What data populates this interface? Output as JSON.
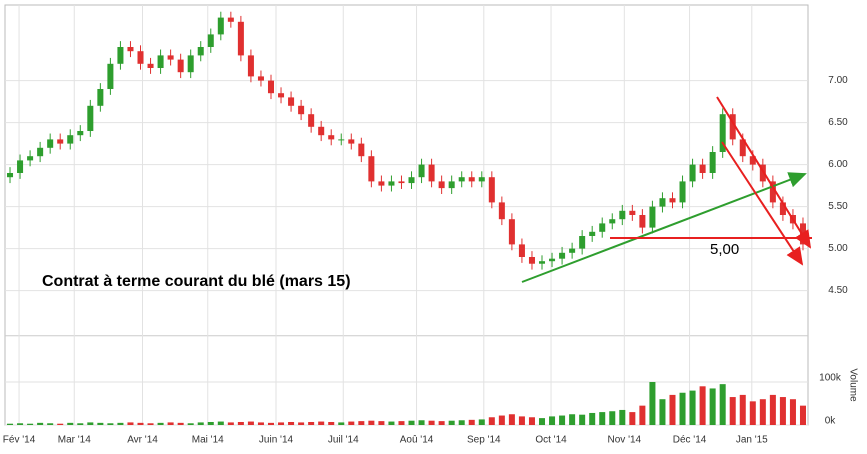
{
  "chart_data": {
    "type": "candlestick",
    "annotations": [
      "Contrat à terme courant du blé (mars 15)",
      "5,00"
    ],
    "volume_label": "Volume",
    "up_color": "#2e9e2e",
    "down_color": "#e03030",
    "grid": true,
    "x": [
      0,
      1,
      2,
      3,
      4,
      5,
      6,
      7,
      8,
      9,
      10,
      11,
      12,
      13,
      14,
      15,
      16,
      17,
      18,
      19,
      20,
      21,
      22,
      23,
      24,
      25,
      26,
      27,
      28,
      29,
      30,
      31,
      32,
      33,
      34,
      35,
      36,
      37,
      38,
      39,
      40,
      41,
      42,
      43,
      44,
      45,
      46,
      47,
      48,
      49,
      50,
      51,
      52,
      53,
      54,
      55,
      56,
      57,
      58,
      59,
      60,
      61,
      62,
      63,
      64,
      65,
      66,
      67,
      68,
      69,
      70,
      71,
      72,
      73,
      74,
      75,
      76,
      77,
      78,
      79
    ],
    "open": [
      5.85,
      5.9,
      6.05,
      6.1,
      6.2,
      6.3,
      6.25,
      6.35,
      6.4,
      6.7,
      6.9,
      7.2,
      7.4,
      7.35,
      7.2,
      7.15,
      7.3,
      7.25,
      7.1,
      7.3,
      7.4,
      7.55,
      7.75,
      7.7,
      7.3,
      7.05,
      7.0,
      6.85,
      6.8,
      6.7,
      6.6,
      6.45,
      6.35,
      6.3,
      6.3,
      6.25,
      6.1,
      5.8,
      5.75,
      5.8,
      5.78,
      5.85,
      6.0,
      5.8,
      5.72,
      5.8,
      5.85,
      5.8,
      5.85,
      5.55,
      5.35,
      5.05,
      4.9,
      4.82,
      4.85,
      4.88,
      4.95,
      5.0,
      5.15,
      5.2,
      5.3,
      5.35,
      5.45,
      5.4,
      5.25,
      5.5,
      5.6,
      5.55,
      5.8,
      6.0,
      5.9,
      6.15,
      6.6,
      6.3,
      6.1,
      6.0,
      5.8,
      5.55,
      5.4,
      5.3
    ],
    "high": [
      5.97,
      6.12,
      6.17,
      6.27,
      6.37,
      6.37,
      6.42,
      6.47,
      6.77,
      6.97,
      7.27,
      7.47,
      7.47,
      7.42,
      7.27,
      7.37,
      7.37,
      7.32,
      7.37,
      7.47,
      7.62,
      7.82,
      7.82,
      7.77,
      7.37,
      7.12,
      7.07,
      6.92,
      6.87,
      6.77,
      6.67,
      6.52,
      6.42,
      6.37,
      6.37,
      6.32,
      6.17,
      5.87,
      5.87,
      5.87,
      5.92,
      6.07,
      6.07,
      5.87,
      5.87,
      5.92,
      5.92,
      5.92,
      5.92,
      5.62,
      5.42,
      5.12,
      4.97,
      4.92,
      4.95,
      5.02,
      5.07,
      5.22,
      5.27,
      5.37,
      5.42,
      5.52,
      5.52,
      5.47,
      5.57,
      5.67,
      5.67,
      5.87,
      6.07,
      6.07,
      6.22,
      6.67,
      6.67,
      6.37,
      6.17,
      6.07,
      5.87,
      5.62,
      5.47,
      5.37
    ],
    "low": [
      5.78,
      5.83,
      5.98,
      6.03,
      6.13,
      6.18,
      6.18,
      6.28,
      6.33,
      6.63,
      6.83,
      7.13,
      7.28,
      7.13,
      7.08,
      7.08,
      7.18,
      7.03,
      7.03,
      7.23,
      7.33,
      7.48,
      7.63,
      7.23,
      6.98,
      6.93,
      6.78,
      6.73,
      6.63,
      6.53,
      6.38,
      6.28,
      6.23,
      6.23,
      6.18,
      6.03,
      5.73,
      5.68,
      5.68,
      5.71,
      5.71,
      5.78,
      5.73,
      5.65,
      5.65,
      5.73,
      5.73,
      5.73,
      5.48,
      5.28,
      4.98,
      4.83,
      4.75,
      4.75,
      4.78,
      4.81,
      4.88,
      4.93,
      5.08,
      5.13,
      5.23,
      5.28,
      5.33,
      5.18,
      5.18,
      5.43,
      5.48,
      5.48,
      5.73,
      5.83,
      5.83,
      6.08,
      6.23,
      6.03,
      5.93,
      5.73,
      5.48,
      5.33,
      5.23,
      4.98
    ],
    "close": [
      5.9,
      6.05,
      6.1,
      6.2,
      6.3,
      6.25,
      6.35,
      6.4,
      6.7,
      6.9,
      7.2,
      7.4,
      7.35,
      7.2,
      7.15,
      7.3,
      7.25,
      7.1,
      7.3,
      7.4,
      7.55,
      7.75,
      7.7,
      7.3,
      7.05,
      7.0,
      6.85,
      6.8,
      6.7,
      6.6,
      6.45,
      6.35,
      6.3,
      6.3,
      6.25,
      6.1,
      5.8,
      5.75,
      5.8,
      5.78,
      5.85,
      6.0,
      5.8,
      5.72,
      5.8,
      5.85,
      5.8,
      5.85,
      5.55,
      5.35,
      5.05,
      4.9,
      4.82,
      4.85,
      4.88,
      4.95,
      5.0,
      5.15,
      5.2,
      5.3,
      5.35,
      5.45,
      5.4,
      5.25,
      5.5,
      5.6,
      5.55,
      5.8,
      6.0,
      5.9,
      6.15,
      6.6,
      6.3,
      6.1,
      6.0,
      5.8,
      5.55,
      5.4,
      5.3,
      5.05
    ],
    "volume": [
      3000,
      4000,
      3000,
      5000,
      4000,
      3000,
      5000,
      4000,
      6000,
      5000,
      4000,
      5000,
      6000,
      5000,
      4000,
      5000,
      6000,
      5000,
      4000,
      6000,
      7000,
      8000,
      6000,
      7000,
      8000,
      6000,
      5000,
      6000,
      7000,
      6000,
      7000,
      8000,
      7000,
      6000,
      8000,
      9000,
      10000,
      9000,
      8000,
      9000,
      10000,
      11000,
      10000,
      9000,
      10000,
      11000,
      12000,
      13000,
      18000,
      22000,
      25000,
      20000,
      18000,
      16000,
      20000,
      22000,
      25000,
      24000,
      28000,
      30000,
      32000,
      35000,
      30000,
      45000,
      100000,
      60000,
      70000,
      75000,
      80000,
      90000,
      85000,
      95000,
      65000,
      70000,
      55000,
      60000,
      70000,
      65000,
      60000,
      45000
    ],
    "xlim": [
      -0.5,
      79.5
    ],
    "xticks": [
      {
        "value": 0.9,
        "label": "Fév '14"
      },
      {
        "value": 6.4,
        "label": "Mar '14"
      },
      {
        "value": 13.2,
        "label": "Avr '14"
      },
      {
        "value": 19.7,
        "label": "Mai '14"
      },
      {
        "value": 26.5,
        "label": "Juin '14"
      },
      {
        "value": 33.2,
        "label": "Juil '14"
      },
      {
        "value": 40.5,
        "label": "Aoû '14"
      },
      {
        "value": 47.2,
        "label": "Sep '14"
      },
      {
        "value": 53.9,
        "label": "Oct '14"
      },
      {
        "value": 61.2,
        "label": "Nov '14"
      },
      {
        "value": 67.7,
        "label": "Déc '14"
      },
      {
        "value": 73.9,
        "label": "Jan '15"
      }
    ],
    "ylim": [
      4.0,
      7.9
    ],
    "yticks": [
      {
        "value": 4.5,
        "label": "4.50"
      },
      {
        "value": 5.0,
        "label": "5.00"
      },
      {
        "value": 5.5,
        "label": "5.50"
      },
      {
        "value": 6.0,
        "label": "6.00"
      },
      {
        "value": 6.5,
        "label": "6.50"
      },
      {
        "value": 7.0,
        "label": "7.00"
      }
    ],
    "volume_ylim": [
      0,
      200000
    ],
    "volume_yticks": [
      {
        "value": 0,
        "label": "0k"
      },
      {
        "value": 100000,
        "label": "100k"
      }
    ]
  }
}
